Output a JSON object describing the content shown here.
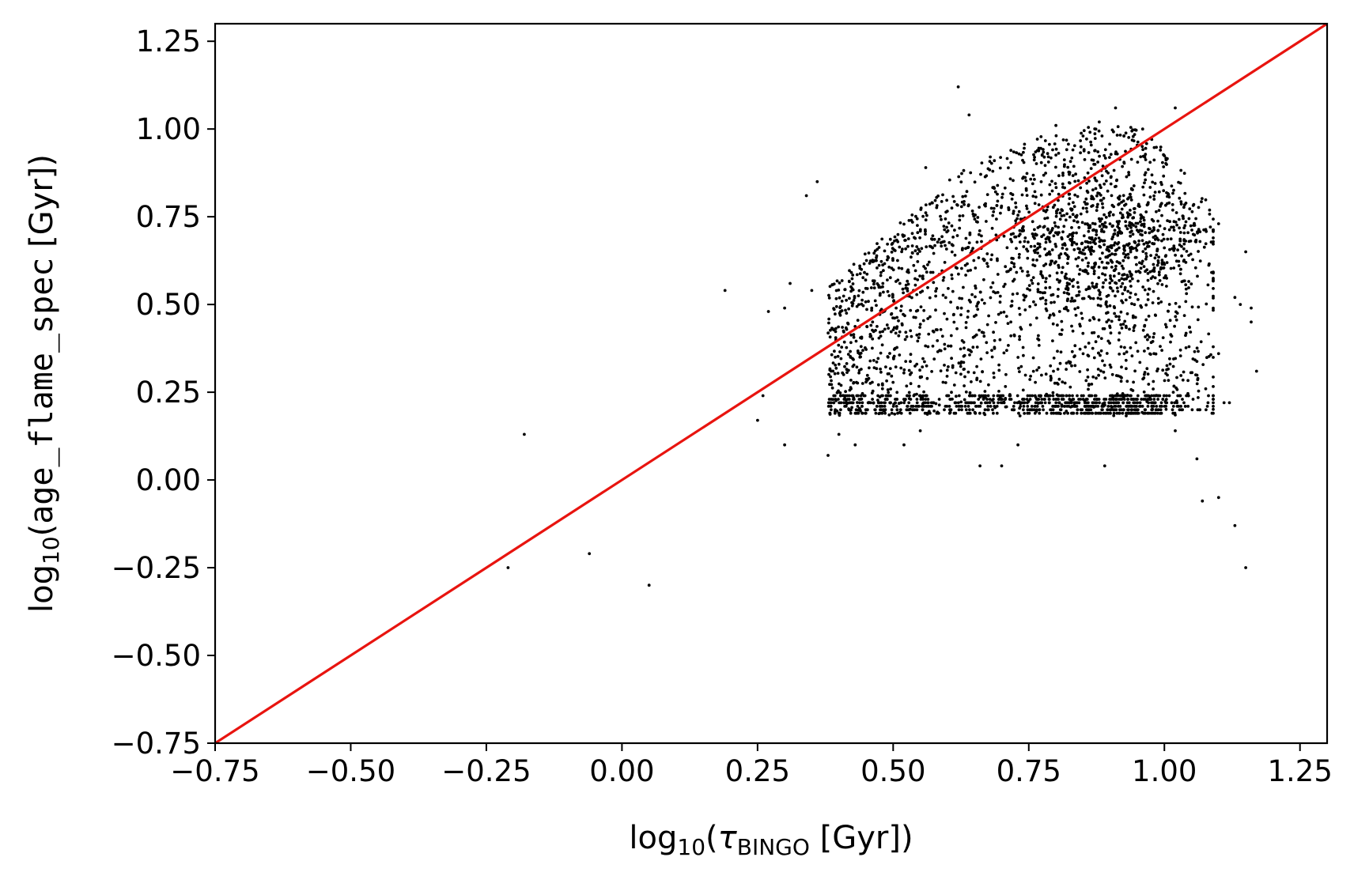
{
  "chart_data": {
    "type": "scatter",
    "title": "",
    "xlabel": {
      "prefix": "log",
      "sub": "10",
      "open": "(",
      "symbol": "τ",
      "symbol_sub": "BINGO",
      "rest": " [Gyr])"
    },
    "ylabel": {
      "prefix": "log",
      "sub": "10",
      "open": "(",
      "code": "age_flame_spec",
      "rest": " [Gyr])"
    },
    "xlim": [
      -0.75,
      1.3
    ],
    "ylim": [
      -0.75,
      1.3
    ],
    "x_ticks": [
      -0.75,
      -0.5,
      -0.25,
      0.0,
      0.25,
      0.5,
      0.75,
      1.0,
      1.25
    ],
    "x_tick_labels": [
      "−0.75",
      "−0.50",
      "−0.25",
      "0.00",
      "0.25",
      "0.50",
      "0.75",
      "1.00",
      "1.25"
    ],
    "y_ticks": [
      -0.75,
      -0.5,
      -0.25,
      0.0,
      0.25,
      0.5,
      0.75,
      1.0,
      1.25
    ],
    "y_tick_labels": [
      "−0.75",
      "−0.50",
      "−0.25",
      "0.00",
      "0.25",
      "0.50",
      "0.75",
      "1.00",
      "1.25"
    ],
    "grid": false,
    "legend": "none",
    "reference_line": {
      "type": "one-to-one",
      "points": [
        [
          -0.75,
          -0.75
        ],
        [
          1.3,
          1.3
        ]
      ],
      "color": "#e8140f"
    },
    "point_color": "#000000",
    "points": [
      [
        -0.21,
        -0.25
      ],
      [
        -0.18,
        0.13
      ],
      [
        -0.06,
        -0.21
      ],
      [
        0.05,
        -0.3
      ],
      [
        0.19,
        0.54
      ],
      [
        0.25,
        0.17
      ],
      [
        0.26,
        0.24
      ],
      [
        0.27,
        0.48
      ],
      [
        0.3,
        0.49
      ],
      [
        0.3,
        0.1
      ],
      [
        0.31,
        0.56
      ],
      [
        0.34,
        0.81
      ],
      [
        0.35,
        0.54
      ],
      [
        0.36,
        0.85
      ],
      [
        0.38,
        0.07
      ],
      [
        0.4,
        0.13
      ],
      [
        0.43,
        0.1
      ],
      [
        0.52,
        0.1
      ],
      [
        0.55,
        0.14
      ],
      [
        0.56,
        0.89
      ],
      [
        0.62,
        1.12
      ],
      [
        0.64,
        1.04
      ],
      [
        0.66,
        0.04
      ],
      [
        0.7,
        0.04
      ],
      [
        0.73,
        0.1
      ],
      [
        0.8,
        1.01
      ],
      [
        0.85,
        0.98
      ],
      [
        0.88,
        1.02
      ],
      [
        0.89,
        0.04
      ],
      [
        0.91,
        1.06
      ],
      [
        0.96,
        1.0
      ],
      [
        1.02,
        1.06
      ],
      [
        1.02,
        0.14
      ],
      [
        1.06,
        0.06
      ],
      [
        1.07,
        -0.06
      ],
      [
        1.1,
        -0.05
      ],
      [
        1.13,
        -0.13
      ],
      [
        1.15,
        -0.25
      ],
      [
        1.11,
        0.22
      ],
      [
        1.12,
        0.22
      ],
      [
        1.15,
        0.65
      ],
      [
        1.16,
        0.49
      ],
      [
        1.17,
        0.31
      ],
      [
        1.13,
        0.52
      ],
      [
        1.1,
        0.73
      ],
      [
        1.09,
        0.57
      ],
      [
        1.1,
        0.36
      ],
      [
        1.14,
        0.5
      ],
      [
        1.16,
        0.45
      ]
    ],
    "dense_region": {
      "n": 3200,
      "x_range": [
        0.38,
        1.09
      ],
      "y_floor": 0.18,
      "y_ceiling_at_x": [
        [
          0.38,
          0.55
        ],
        [
          0.5,
          0.72
        ],
        [
          0.62,
          0.88
        ],
        [
          0.75,
          0.97
        ],
        [
          0.88,
          1.02
        ],
        [
          0.97,
          1.0
        ],
        [
          1.04,
          0.88
        ],
        [
          1.09,
          0.72
        ]
      ],
      "floor_band_y": [
        0.19,
        0.2,
        0.21,
        0.22,
        0.23,
        0.24
      ],
      "hotspot": [
        0.92,
        0.68
      ]
    }
  }
}
